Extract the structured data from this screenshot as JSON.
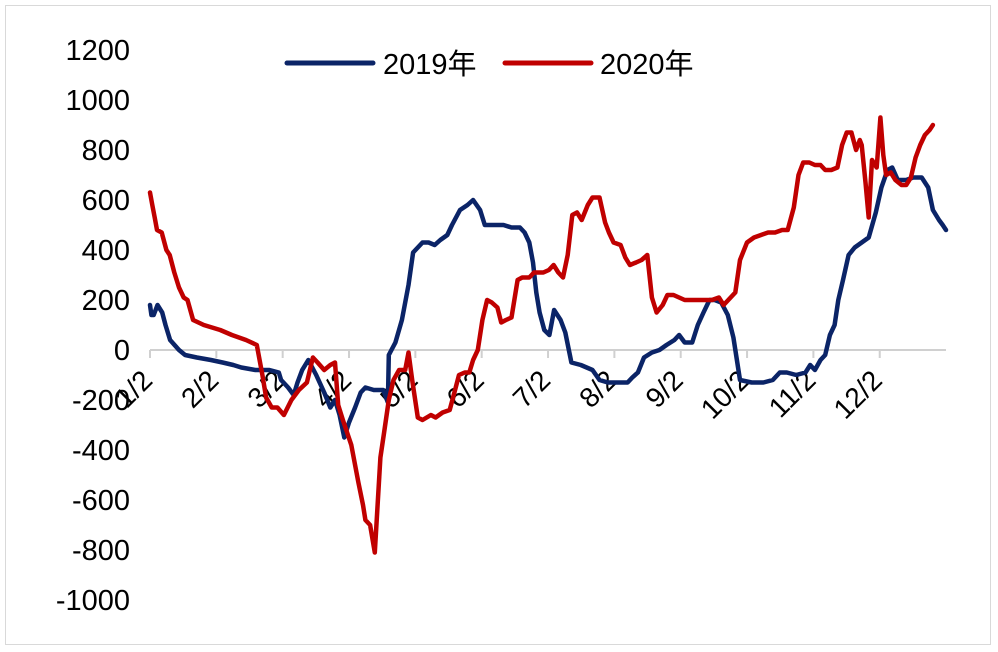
{
  "chart_data": {
    "type": "line",
    "title": "",
    "xlabel": "",
    "ylabel": "",
    "ylim": [
      -1000,
      1200
    ],
    "yticks": [
      1200,
      1000,
      800,
      600,
      400,
      200,
      0,
      -200,
      -400,
      -600,
      -800,
      -1000
    ],
    "xticks": [
      "1/2",
      "2/2",
      "3/2",
      "4/2",
      "5/2",
      "6/2",
      "7/2",
      "8/2",
      "9/2",
      "10/2",
      "11/2",
      "12/2"
    ],
    "x_unit": "months since 1/2",
    "legend_position": "top-center",
    "series": [
      {
        "name": "2019年",
        "color": "#0b2467",
        "points": [
          [
            0,
            180
          ],
          [
            0.03,
            140
          ],
          [
            0.08,
            140
          ],
          [
            0.16,
            180
          ],
          [
            0.26,
            150
          ],
          [
            0.33,
            100
          ],
          [
            0.43,
            40
          ],
          [
            0.62,
            0
          ],
          [
            0.75,
            -20
          ],
          [
            1.0,
            -30
          ],
          [
            1.3,
            -40
          ],
          [
            1.55,
            -50
          ],
          [
            1.78,
            -60
          ],
          [
            1.95,
            -70
          ],
          [
            2.25,
            -80
          ],
          [
            2.55,
            -80
          ],
          [
            2.75,
            -90
          ],
          [
            2.8,
            -120
          ],
          [
            2.95,
            -150
          ],
          [
            3.07,
            -180
          ],
          [
            3.15,
            -130
          ],
          [
            3.25,
            -80
          ],
          [
            3.38,
            -40
          ],
          [
            3.55,
            -100
          ],
          [
            3.72,
            -170
          ],
          [
            3.85,
            -230
          ],
          [
            3.95,
            -200
          ],
          [
            4.05,
            -260
          ],
          [
            4.15,
            -350
          ],
          [
            4.25,
            -290
          ],
          [
            4.38,
            -230
          ],
          [
            4.5,
            -170
          ],
          [
            4.6,
            -150
          ],
          [
            4.78,
            -160
          ],
          [
            4.98,
            -160
          ],
          [
            5.08,
            -210
          ],
          [
            5.1,
            -20
          ],
          [
            5.24,
            30
          ],
          [
            5.38,
            120
          ],
          [
            5.52,
            260
          ],
          [
            5.62,
            390
          ],
          [
            5.72,
            410
          ],
          [
            5.82,
            430
          ],
          [
            5.95,
            430
          ],
          [
            6.08,
            420
          ],
          [
            6.2,
            440
          ],
          [
            6.35,
            460
          ],
          [
            6.45,
            500
          ],
          [
            6.62,
            560
          ],
          [
            6.78,
            580
          ],
          [
            6.9,
            600
          ],
          [
            7.05,
            560
          ],
          [
            7.15,
            500
          ],
          [
            7.3,
            500
          ],
          [
            7.55,
            500
          ],
          [
            7.72,
            490
          ],
          [
            7.9,
            490
          ],
          [
            8.0,
            470
          ],
          [
            8.1,
            430
          ],
          [
            8.18,
            350
          ],
          [
            8.25,
            230
          ],
          [
            8.32,
            150
          ],
          [
            8.42,
            80
          ],
          [
            8.53,
            60
          ],
          [
            8.63,
            160
          ],
          [
            8.77,
            120
          ],
          [
            8.87,
            70
          ],
          [
            9.0,
            -50
          ],
          [
            9.2,
            -60
          ],
          [
            9.45,
            -80
          ],
          [
            9.6,
            -120
          ],
          [
            9.78,
            -130
          ],
          [
            10.05,
            -130
          ],
          [
            10.2,
            -130
          ],
          [
            10.3,
            -110
          ],
          [
            10.42,
            -90
          ],
          [
            10.55,
            -30
          ],
          [
            10.72,
            -10
          ],
          [
            10.88,
            0
          ],
          [
            11.03,
            20
          ],
          [
            11.2,
            40
          ],
          [
            11.3,
            60
          ],
          [
            11.42,
            30
          ],
          [
            11.58,
            30
          ],
          [
            11.7,
            100
          ],
          [
            11.82,
            150
          ],
          [
            11.95,
            200
          ],
          [
            12.06,
            200
          ],
          [
            12.2,
            190
          ],
          [
            12.34,
            140
          ],
          [
            12.46,
            50
          ],
          [
            12.6,
            -120
          ],
          [
            12.85,
            -130
          ],
          [
            13.1,
            -130
          ],
          [
            13.3,
            -120
          ],
          [
            13.45,
            -90
          ],
          [
            13.6,
            -90
          ],
          [
            13.8,
            -100
          ],
          [
            14.0,
            -90
          ],
          [
            14.1,
            -60
          ],
          [
            14.2,
            -80
          ],
          [
            14.32,
            -40
          ],
          [
            14.42,
            -20
          ],
          [
            14.52,
            60
          ],
          [
            14.62,
            100
          ],
          [
            14.7,
            200
          ],
          [
            14.8,
            280
          ],
          [
            14.92,
            380
          ],
          [
            15.05,
            410
          ],
          [
            15.2,
            430
          ],
          [
            15.35,
            450
          ],
          [
            15.5,
            550
          ],
          [
            15.62,
            650
          ],
          [
            15.75,
            720
          ],
          [
            15.85,
            730
          ],
          [
            15.97,
            680
          ],
          [
            16.05,
            680
          ],
          [
            16.15,
            680
          ],
          [
            16.3,
            690
          ],
          [
            16.48,
            690
          ],
          [
            16.62,
            650
          ],
          [
            16.72,
            560
          ],
          [
            16.85,
            520
          ],
          [
            16.93,
            500
          ],
          [
            17.0,
            480
          ]
        ]
      },
      {
        "name": "2020年",
        "color": "#c00000",
        "points": [
          [
            0,
            630
          ],
          [
            0.05,
            580
          ],
          [
            0.1,
            530
          ],
          [
            0.15,
            480
          ],
          [
            0.25,
            470
          ],
          [
            0.35,
            400
          ],
          [
            0.42,
            380
          ],
          [
            0.52,
            310
          ],
          [
            0.62,
            250
          ],
          [
            0.72,
            210
          ],
          [
            0.8,
            200
          ],
          [
            0.92,
            120
          ],
          [
            1.15,
            100
          ],
          [
            1.5,
            80
          ],
          [
            1.75,
            60
          ],
          [
            2.05,
            40
          ],
          [
            2.28,
            20
          ],
          [
            2.4,
            -100
          ],
          [
            2.48,
            -190
          ],
          [
            2.6,
            -230
          ],
          [
            2.72,
            -230
          ],
          [
            2.86,
            -260
          ],
          [
            3.02,
            -200
          ],
          [
            3.18,
            -160
          ],
          [
            3.35,
            -130
          ],
          [
            3.48,
            -30
          ],
          [
            3.58,
            -50
          ],
          [
            3.72,
            -80
          ],
          [
            3.85,
            -60
          ],
          [
            3.95,
            -50
          ],
          [
            4.02,
            -220
          ],
          [
            4.12,
            -280
          ],
          [
            4.3,
            -380
          ],
          [
            4.45,
            -530
          ],
          [
            4.55,
            -620
          ],
          [
            4.6,
            -680
          ],
          [
            4.7,
            -700
          ],
          [
            4.8,
            -810
          ],
          [
            4.92,
            -430
          ],
          [
            5.0,
            -330
          ],
          [
            5.1,
            -200
          ],
          [
            5.2,
            -120
          ],
          [
            5.32,
            -80
          ],
          [
            5.45,
            -80
          ],
          [
            5.52,
            -10
          ],
          [
            5.6,
            -120
          ],
          [
            5.72,
            -270
          ],
          [
            5.82,
            -280
          ],
          [
            6.0,
            -260
          ],
          [
            6.1,
            -270
          ],
          [
            6.25,
            -250
          ],
          [
            6.4,
            -240
          ],
          [
            6.5,
            -170
          ],
          [
            6.6,
            -100
          ],
          [
            6.72,
            -90
          ],
          [
            6.82,
            -90
          ],
          [
            6.9,
            -40
          ],
          [
            7.0,
            0
          ],
          [
            7.1,
            120
          ],
          [
            7.2,
            200
          ],
          [
            7.3,
            190
          ],
          [
            7.42,
            170
          ],
          [
            7.5,
            110
          ],
          [
            7.6,
            120
          ],
          [
            7.72,
            130
          ],
          [
            7.85,
            280
          ],
          [
            7.95,
            290
          ],
          [
            8.1,
            290
          ],
          [
            8.2,
            310
          ],
          [
            8.4,
            310
          ],
          [
            8.52,
            320
          ],
          [
            8.62,
            340
          ],
          [
            8.72,
            310
          ],
          [
            8.82,
            290
          ],
          [
            8.92,
            380
          ],
          [
            9.02,
            540
          ],
          [
            9.12,
            550
          ],
          [
            9.22,
            520
          ],
          [
            9.35,
            580
          ],
          [
            9.45,
            610
          ],
          [
            9.6,
            610
          ],
          [
            9.72,
            510
          ],
          [
            9.8,
            470
          ],
          [
            9.9,
            430
          ],
          [
            10.05,
            420
          ],
          [
            10.15,
            370
          ],
          [
            10.25,
            340
          ],
          [
            10.38,
            350
          ],
          [
            10.5,
            360
          ],
          [
            10.62,
            380
          ],
          [
            10.72,
            210
          ],
          [
            10.82,
            150
          ],
          [
            10.95,
            180
          ],
          [
            11.05,
            220
          ],
          [
            11.18,
            220
          ],
          [
            11.3,
            210
          ],
          [
            11.42,
            200
          ],
          [
            11.58,
            200
          ],
          [
            11.72,
            200
          ],
          [
            11.85,
            200
          ],
          [
            12.0,
            200
          ],
          [
            12.15,
            210
          ],
          [
            12.25,
            180
          ],
          [
            12.35,
            200
          ],
          [
            12.5,
            230
          ],
          [
            12.6,
            360
          ],
          [
            12.75,
            430
          ],
          [
            12.9,
            450
          ],
          [
            13.05,
            460
          ],
          [
            13.2,
            470
          ],
          [
            13.35,
            470
          ],
          [
            13.5,
            480
          ],
          [
            13.62,
            480
          ],
          [
            13.75,
            570
          ],
          [
            13.85,
            700
          ],
          [
            13.95,
            750
          ],
          [
            14.08,
            750
          ],
          [
            14.2,
            740
          ],
          [
            14.32,
            740
          ],
          [
            14.42,
            720
          ],
          [
            14.55,
            720
          ],
          [
            14.68,
            730
          ],
          [
            14.78,
            820
          ],
          [
            14.88,
            870
          ],
          [
            14.98,
            870
          ],
          [
            15.08,
            800
          ],
          [
            15.16,
            840
          ],
          [
            15.2,
            820
          ],
          [
            15.28,
            670
          ],
          [
            15.35,
            530
          ],
          [
            15.42,
            760
          ],
          [
            15.52,
            730
          ],
          [
            15.6,
            930
          ],
          [
            15.66,
            780
          ],
          [
            15.72,
            700
          ],
          [
            15.82,
            710
          ],
          [
            15.92,
            680
          ],
          [
            16.05,
            660
          ],
          [
            16.15,
            660
          ],
          [
            16.25,
            690
          ],
          [
            16.35,
            770
          ],
          [
            16.45,
            820
          ],
          [
            16.55,
            860
          ],
          [
            16.65,
            880
          ],
          [
            16.72,
            900
          ]
        ]
      }
    ]
  }
}
